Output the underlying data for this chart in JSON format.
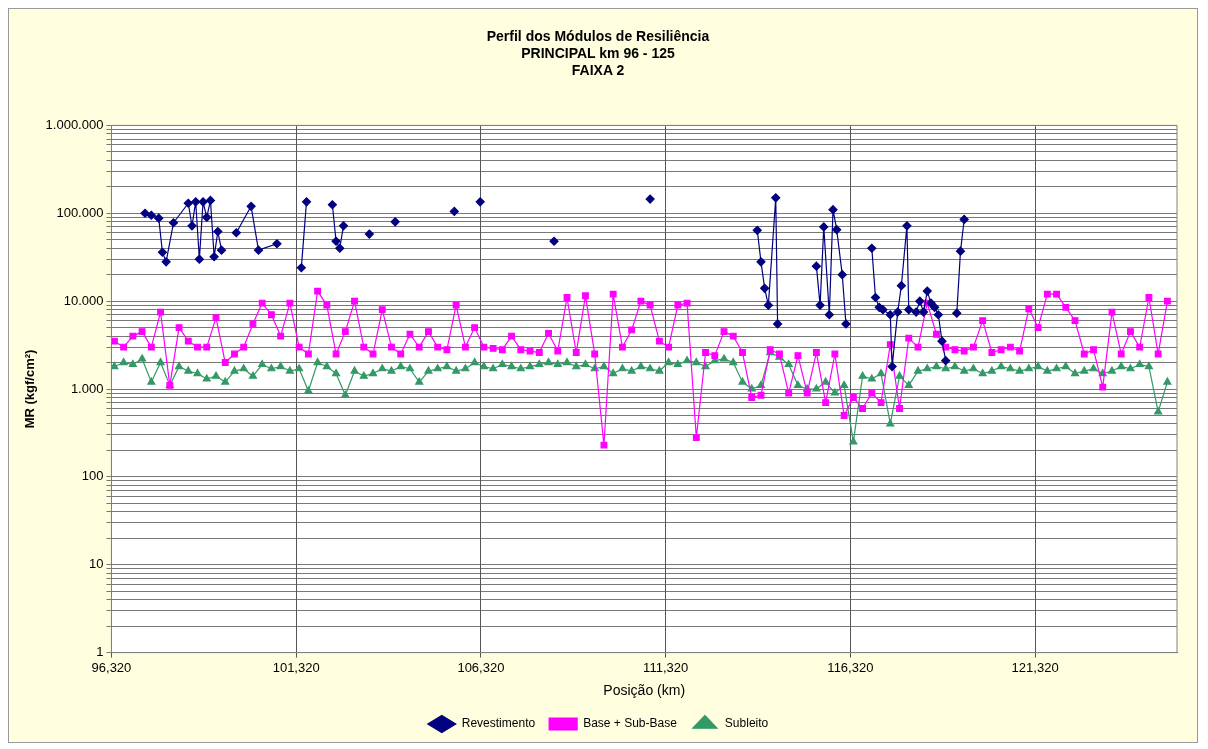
{
  "chart_data": {
    "type": "line",
    "title": "Perfil dos Módulos de Resiliência\nPRINCIPAL km 96 - 125\nFAIXA 2",
    "xlabel": "Posição (km)",
    "ylabel": "MR (kgf/cm²)",
    "log": "y",
    "grid": true,
    "legend": "bottom",
    "line_style": "solid",
    "xlim": [
      96.32,
      125.16
    ],
    "xticks": [
      {
        "value": 96.32,
        "label": "96,320"
      },
      {
        "value": 101.32,
        "label": "101,320"
      },
      {
        "value": 106.32,
        "label": "106,320"
      },
      {
        "value": 111.32,
        "label": "111,320"
      },
      {
        "value": 116.32,
        "label": "116,320"
      },
      {
        "value": 121.32,
        "label": "121,320"
      }
    ],
    "ylim": [
      1,
      1000000
    ],
    "yticks": [
      1,
      {
        "value": 2,
        "label": null
      },
      {
        "value": 3,
        "label": null
      },
      {
        "value": 4,
        "label": null
      },
      {
        "value": 5,
        "label": null
      },
      {
        "value": 6,
        "label": null
      },
      {
        "value": 7,
        "label": null
      },
      {
        "value": 8,
        "label": null
      },
      {
        "value": 9,
        "label": null
      },
      10,
      {
        "value": 20,
        "label": null
      },
      {
        "value": 30,
        "label": null
      },
      {
        "value": 40,
        "label": null
      },
      {
        "value": 50,
        "label": null
      },
      {
        "value": 60,
        "label": null
      },
      {
        "value": 70,
        "label": null
      },
      {
        "value": 80,
        "label": null
      },
      {
        "value": 90,
        "label": null
      },
      100,
      {
        "value": 200,
        "label": null
      },
      {
        "value": 300,
        "label": null
      },
      {
        "value": 400,
        "label": null
      },
      {
        "value": 500,
        "label": null
      },
      {
        "value": 600,
        "label": null
      },
      {
        "value": 700,
        "label": null
      },
      {
        "value": 800,
        "label": null
      },
      {
        "value": 900,
        "label": null
      },
      {
        "value": 1000,
        "label": "1.000"
      },
      {
        "value": 2000,
        "label": null
      },
      {
        "value": 3000,
        "label": null
      },
      {
        "value": 4000,
        "label": null
      },
      {
        "value": 5000,
        "label": null
      },
      {
        "value": 6000,
        "label": null
      },
      {
        "value": 7000,
        "label": null
      },
      {
        "value": 8000,
        "label": null
      },
      {
        "value": 9000,
        "label": null
      },
      {
        "value": 10000,
        "label": "10.000"
      },
      {
        "value": 20000,
        "label": null
      },
      {
        "value": 30000,
        "label": null
      },
      {
        "value": 40000,
        "label": null
      },
      {
        "value": 50000,
        "label": null
      },
      {
        "value": 60000,
        "label": null
      },
      {
        "value": 70000,
        "label": null
      },
      {
        "value": 80000,
        "label": null
      },
      {
        "value": 90000,
        "label": null
      },
      {
        "value": 100000,
        "label": "100.000"
      },
      {
        "value": 200000,
        "label": null
      },
      {
        "value": 300000,
        "label": null
      },
      {
        "value": 400000,
        "label": null
      },
      {
        "value": 500000,
        "label": null
      },
      {
        "value": 600000,
        "label": null
      },
      {
        "value": 700000,
        "label": null
      },
      {
        "value": 800000,
        "label": null
      },
      {
        "value": 900000,
        "label": null
      },
      {
        "value": 1000000,
        "label": "1.000.000"
      }
    ],
    "x": [
      96.4,
      96.65,
      96.9,
      97.15,
      97.4,
      97.65,
      97.9,
      98.15,
      98.4,
      98.65,
      98.9,
      99.15,
      99.4,
      99.65,
      99.9,
      100.15,
      100.4,
      100.65,
      100.9,
      101.15,
      101.4,
      101.65,
      101.9,
      102.15,
      102.4,
      102.65,
      102.9,
      103.15,
      103.4,
      103.65,
      103.9,
      104.15,
      104.4,
      104.65,
      104.9,
      105.15,
      105.4,
      105.65,
      105.9,
      106.15,
      106.4,
      106.65,
      106.9,
      107.15,
      107.4,
      107.65,
      107.9,
      108.15,
      108.4,
      108.65,
      108.9,
      109.15,
      109.4,
      109.65,
      109.9,
      110.15,
      110.4,
      110.65,
      110.9,
      111.15,
      111.4,
      111.65,
      111.9,
      112.15,
      112.4,
      112.65,
      112.9,
      113.15,
      113.4,
      113.65,
      113.9,
      114.15,
      114.4,
      114.65,
      114.9,
      115.15,
      115.4,
      115.65,
      115.9,
      116.15,
      116.4,
      116.65,
      116.9,
      117.15,
      117.4,
      117.65,
      117.9,
      118.15,
      118.4,
      118.65,
      118.9,
      119.15,
      119.4,
      119.65,
      119.9,
      120.15,
      120.4,
      120.65,
      120.9,
      121.15,
      121.4,
      121.65,
      121.9,
      122.15,
      122.4,
      122.65,
      122.9,
      123.15,
      123.4,
      123.65,
      123.9,
      124.15,
      124.4,
      124.65,
      124.9
    ],
    "series": [
      {
        "name": "Revestimento",
        "color": "#000080",
        "marker": "diamond",
        "x": [
          97.23,
          97.4,
          97.6,
          97.7,
          97.8,
          98.0,
          98.4,
          98.5,
          98.6,
          98.7,
          98.8,
          98.9,
          99.0,
          99.1,
          99.2,
          99.3,
          99.5,
          99.7,
          100.1,
          100.3,
          100.8,
          101.1,
          101.46,
          101.6,
          102.0,
          102.3,
          102.4,
          102.5,
          102.6,
          103.0,
          103.3,
          103.6,
          104.0,
          104.8,
          105.6,
          106.0,
          106.3,
          107.3,
          108.3,
          109.6,
          110.9,
          113.5,
          113.8,
          113.9,
          114.0,
          114.1,
          114.3,
          114.35,
          115.0,
          115.4,
          115.5,
          115.6,
          115.75,
          115.85,
          115.95,
          116.1,
          116.2,
          116.6,
          116.9,
          117.0,
          117.1,
          117.2,
          117.4,
          117.45,
          117.6,
          117.7,
          117.85,
          117.9,
          118.1,
          118.2,
          118.3,
          118.4,
          118.5,
          118.6,
          118.7,
          118.8,
          118.9,
          119.1,
          119.2,
          119.3,
          119.4
        ],
        "values": [
          100000,
          95000,
          88000,
          36000,
          28000,
          78000,
          130000,
          72000,
          135000,
          30000,
          135000,
          90000,
          140000,
          32000,
          62000,
          38000,
          null,
          60000,
          120000,
          38000,
          45000,
          null,
          24000,
          135000,
          null,
          125000,
          48000,
          40000,
          72000,
          null,
          58000,
          null,
          80000,
          null,
          105000,
          null,
          135000,
          null,
          48000,
          null,
          145000,
          null,
          64000,
          28000,
          14000,
          9000,
          150000,
          5500,
          null,
          25000,
          9000,
          70000,
          7000,
          110000,
          65000,
          20000,
          5500,
          null,
          40000,
          11000,
          8500,
          8000,
          7000,
          1800,
          7500,
          15000,
          72000,
          8000,
          7500,
          10000,
          7500,
          13000,
          9500,
          8500,
          7000,
          3500,
          2100,
          null,
          7300,
          37000,
          85000
        ]
      },
      {
        "name": "Base + Sub-Base",
        "color": "#ff00ff",
        "marker": "square",
        "values": [
          3500,
          3000,
          4000,
          4500,
          3000,
          7500,
          1100,
          5000,
          3500,
          3000,
          3000,
          6500,
          2000,
          2500,
          3000,
          5500,
          9500,
          7000,
          4000,
          9500,
          3000,
          2500,
          13000,
          9000,
          2500,
          4500,
          10000,
          3000,
          2500,
          8000,
          3000,
          2500,
          4200,
          3000,
          4500,
          3000,
          2800,
          9000,
          3000,
          5000,
          3000,
          2900,
          2800,
          4000,
          2800,
          2700,
          2600,
          4300,
          2700,
          11000,
          2600,
          11500,
          2500,
          230,
          12000,
          3000,
          4700,
          10000,
          9000,
          3500,
          3000,
          9000,
          9500,
          280,
          2600,
          2400,
          4500,
          4000,
          2600,
          800,
          850,
          2800,
          2500,
          900,
          2400,
          900,
          2600,
          700,
          2500,
          500,
          800,
          600,
          900,
          700,
          3200,
          600,
          3800,
          3000,
          9500,
          4200,
          3000,
          2800,
          2700,
          3000,
          6000,
          2600,
          2800,
          3000,
          2700,
          8200,
          5000,
          12000,
          12000,
          8500,
          6000,
          2500,
          2800,
          1050,
          7500,
          2500,
          4500,
          3000,
          11000,
          2500,
          10000
        ]
      },
      {
        "name": "Subleito",
        "color": "#339966",
        "marker": "triangle",
        "values": [
          1800,
          2000,
          1900,
          2200,
          1200,
          2000,
          1100,
          1800,
          1600,
          1500,
          1300,
          1400,
          1200,
          1600,
          1700,
          1400,
          1900,
          1700,
          1800,
          1600,
          1700,
          950,
          2000,
          1800,
          1500,
          850,
          1600,
          1400,
          1500,
          1700,
          1600,
          1800,
          1700,
          1200,
          1600,
          1700,
          1800,
          1600,
          1700,
          2000,
          1800,
          1700,
          1900,
          1800,
          1700,
          1800,
          1900,
          2000,
          1900,
          2000,
          1800,
          1900,
          1700,
          1800,
          1500,
          1700,
          1600,
          1800,
          1700,
          1600,
          2000,
          1900,
          2100,
          2000,
          1800,
          2100,
          2200,
          2000,
          1200,
          1000,
          1100,
          2600,
          2300,
          1900,
          1100,
          1000,
          1000,
          1200,
          900,
          1100,
          250,
          1400,
          1300,
          1500,
          400,
          1400,
          1100,
          1600,
          1700,
          1800,
          1700,
          1800,
          1600,
          1700,
          1500,
          1600,
          1800,
          1700,
          1600,
          1700,
          1800,
          1600,
          1700,
          1800,
          1500,
          1600,
          1700,
          1500,
          1600,
          1800,
          1700,
          1900,
          1800,
          550,
          1200
        ]
      }
    ]
  }
}
